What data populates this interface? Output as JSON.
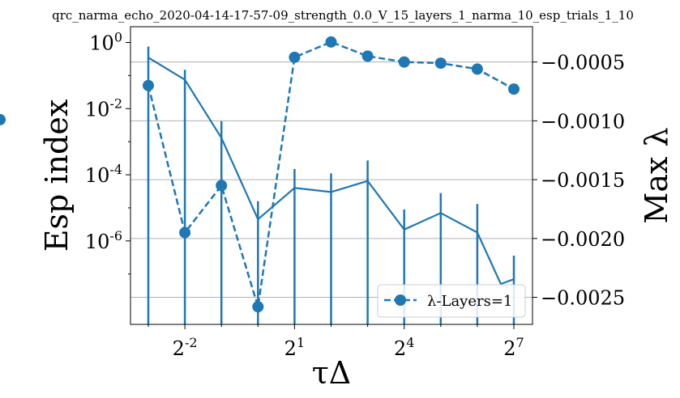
{
  "chart_data": {
    "type": "line",
    "title": "qrc_narma_echo_2020-04-14-17-57-09_strength_0.0_V_15_layers_1_narma_10_esp_trials_1_10",
    "xlabel": "τΔ",
    "ylabel_left": "Esp index",
    "ylabel_right": "Max λ",
    "x_scale": "log2",
    "x": [
      0.125,
      0.25,
      0.5,
      1,
      2,
      4,
      8,
      16,
      32,
      64,
      128
    ],
    "x_ticks": [
      {
        "value": 0.25,
        "base": "2",
        "exp": "-2"
      },
      {
        "value": 2,
        "base": "2",
        "exp": "1"
      },
      {
        "value": 16,
        "base": "2",
        "exp": "4"
      },
      {
        "value": 128,
        "base": "2",
        "exp": "7"
      }
    ],
    "y_left_scale": "log10",
    "y_left_lim": [
      3e-09,
      3
    ],
    "y_left_ticks": [
      {
        "value": 1,
        "base": "10",
        "exp": "0"
      },
      {
        "value": 0.01,
        "base": "10",
        "exp": "-2"
      },
      {
        "value": 0.0001,
        "base": "10",
        "exp": "-4"
      },
      {
        "value": 1e-06,
        "base": "10",
        "exp": "-6"
      }
    ],
    "y_right_lim": [
      -0.00273,
      -0.0002
    ],
    "y_right_ticks": [
      {
        "value": -0.0005,
        "label": "−0.0005"
      },
      {
        "value": -0.001,
        "label": "−0.0010"
      },
      {
        "value": -0.0015,
        "label": "−0.0015"
      },
      {
        "value": -0.002,
        "label": "−0.0020"
      },
      {
        "value": -0.0025,
        "label": "−0.0025"
      }
    ],
    "grid": "horizontal (right axis)",
    "esp_series": {
      "values": [
        0.35,
        0.075,
        0.0013,
        4.5e-06,
        4e-05,
        3e-05,
        6.5e-05,
        2.2e-06,
        7e-06,
        1.8e-06,
        5e-08,
        7e-08
      ],
      "x_points": [
        0.125,
        0.25,
        0.5,
        1,
        2,
        4,
        8,
        16,
        32,
        64,
        100,
        128
      ],
      "error_upper": [
        0.75,
        0.15,
        0.0042,
        1.6e-05,
        0.00015,
        0.00011,
        0.00027,
        9e-06,
        2.8e-05,
        1.3e-05,
        null,
        3.6e-07
      ]
    },
    "lambda_series": {
      "name": "λ-Layers=1",
      "values": [
        -0.0007,
        -0.00195,
        -0.00155,
        -0.00258,
        -0.00046,
        -0.00033,
        -0.00045,
        -0.0005,
        -0.00051,
        -0.00056,
        -0.00073,
        -0.00099
      ]
    },
    "legend": {
      "label": "λ-Layers=1",
      "placement": "lower-right"
    },
    "colors": {
      "series": "#1f77b4",
      "grid": "#b0b0b0",
      "axis": "#000000"
    }
  }
}
